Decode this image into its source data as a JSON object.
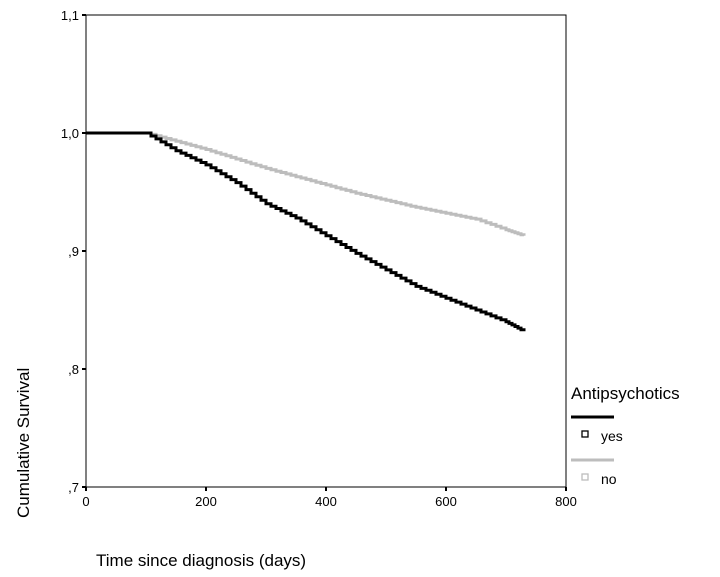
{
  "chart_data": {
    "type": "line",
    "title": "",
    "xlabel": "Time since diagnosis (days)",
    "ylabel": "Cumulative Survival",
    "xlim": [
      0,
      800
    ],
    "ylim": [
      0.7,
      1.1
    ],
    "x_ticks": [
      0,
      200,
      400,
      600,
      800
    ],
    "x_tick_labels": [
      "0",
      "200",
      "400",
      "600",
      "800"
    ],
    "y_ticks": [
      0.7,
      0.8,
      0.9,
      1.0,
      1.1
    ],
    "y_tick_labels": [
      ",7",
      ",8",
      ",9",
      "1,0",
      "1,1"
    ],
    "grid": false,
    "legend": {
      "title": "Antipsychotics",
      "position": "right"
    },
    "series": [
      {
        "name": "yes",
        "color": "#000000",
        "x": [
          0,
          100,
          150,
          200,
          250,
          300,
          350,
          400,
          450,
          500,
          550,
          600,
          650,
          700,
          730
        ],
        "y": [
          1.0,
          1.0,
          0.985,
          0.973,
          0.958,
          0.94,
          0.928,
          0.913,
          0.898,
          0.884,
          0.87,
          0.86,
          0.85,
          0.84,
          0.832
        ]
      },
      {
        "name": "no",
        "color": "#bdbdbd",
        "x": [
          0,
          100,
          150,
          200,
          250,
          300,
          350,
          400,
          450,
          500,
          550,
          600,
          650,
          700,
          730
        ],
        "y": [
          1.0,
          1.0,
          0.993,
          0.986,
          0.978,
          0.97,
          0.963,
          0.956,
          0.949,
          0.943,
          0.937,
          0.932,
          0.927,
          0.918,
          0.913
        ]
      }
    ]
  }
}
